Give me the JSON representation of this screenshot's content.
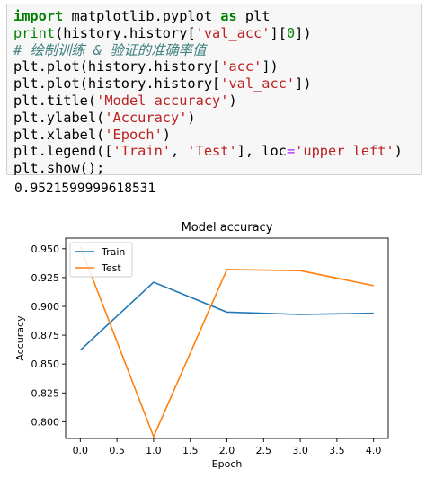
{
  "code_lines": [
    [
      {
        "t": "import",
        "c": "kw"
      },
      {
        "t": " matplotlib.pyplot "
      },
      {
        "t": "as",
        "c": "kw"
      },
      {
        "t": " plt"
      }
    ],
    [
      {
        "t": "print",
        "c": "bi"
      },
      {
        "t": "(history.history["
      },
      {
        "t": "'val_acc'",
        "c": "str"
      },
      {
        "t": "]["
      },
      {
        "t": "0",
        "c": "num"
      },
      {
        "t": "])"
      }
    ],
    [
      {
        "t": "# 绘制训练 & 验证的准确率值",
        "c": "cm"
      }
    ],
    [
      {
        "t": "plt.plot(history.history["
      },
      {
        "t": "'acc'",
        "c": "str"
      },
      {
        "t": "])"
      }
    ],
    [
      {
        "t": "plt.plot(history.history["
      },
      {
        "t": "'val_acc'",
        "c": "str"
      },
      {
        "t": "])"
      }
    ],
    [
      {
        "t": "plt.title("
      },
      {
        "t": "'Model accuracy'",
        "c": "str"
      },
      {
        "t": ")"
      }
    ],
    [
      {
        "t": "plt.ylabel("
      },
      {
        "t": "'Accuracy'",
        "c": "str"
      },
      {
        "t": ")"
      }
    ],
    [
      {
        "t": "plt.xlabel("
      },
      {
        "t": "'Epoch'",
        "c": "str"
      },
      {
        "t": ")"
      }
    ],
    [
      {
        "t": "plt.legend(["
      },
      {
        "t": "'Train'",
        "c": "str"
      },
      {
        "t": ", "
      },
      {
        "t": "'Test'",
        "c": "str"
      },
      {
        "t": "], loc"
      },
      {
        "t": "=",
        "c": "op"
      },
      {
        "t": "'upper left'",
        "c": "str"
      },
      {
        "t": ")"
      }
    ],
    [
      {
        "t": "plt.show();"
      }
    ]
  ],
  "output_text": "0.9521599999618531",
  "chart_data": {
    "type": "line",
    "title": "Model accuracy",
    "xlabel": "Epoch",
    "ylabel": "Accuracy",
    "x": [
      0,
      1,
      2,
      3,
      4
    ],
    "xticks": [
      "0.0",
      "0.5",
      "1.0",
      "1.5",
      "2.0",
      "2.5",
      "3.0",
      "3.5",
      "4.0"
    ],
    "yticks": [
      "0.800",
      "0.825",
      "0.850",
      "0.875",
      "0.900",
      "0.925",
      "0.950"
    ],
    "xlim": [
      -0.2,
      4.2
    ],
    "ylim": [
      0.7855,
      0.9592
    ],
    "legend_loc": "upper left",
    "series": [
      {
        "name": "Train",
        "color": "#1f77b4",
        "values": [
          0.862,
          0.921,
          0.895,
          0.893,
          0.894
        ]
      },
      {
        "name": "Test",
        "color": "#ff7f0e",
        "values": [
          0.952,
          0.787,
          0.932,
          0.931,
          0.918
        ]
      }
    ]
  }
}
